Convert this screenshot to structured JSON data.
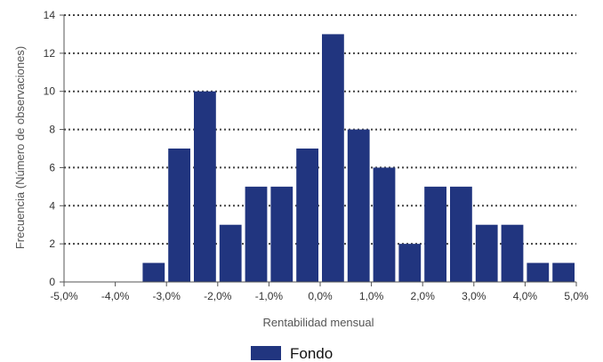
{
  "chart_data": {
    "type": "bar",
    "title": "",
    "xlabel": "Rentabilidad mensual",
    "ylabel": "Frecuencia (Número de observaciones)",
    "ylim": [
      0,
      14
    ],
    "xlim": [
      -5.0,
      5.0
    ],
    "bin_width": 0.5,
    "y_ticks": [
      "0",
      "2",
      "4",
      "6",
      "8",
      "10",
      "12",
      "14"
    ],
    "x_ticks": [
      "-5,0%",
      "-4,0%",
      "-3,0%",
      "-2,0%",
      "-1,0%",
      "0,0%",
      "1,0%",
      "2,0%",
      "3,0%",
      "4,0%",
      "5,0%"
    ],
    "x_tick_values": [
      -5,
      -4,
      -3,
      -2,
      -1,
      0,
      1,
      2,
      3,
      4,
      5
    ],
    "grid": "horizontal dotted",
    "legend_position": "bottom-center",
    "series": [
      {
        "name": "Fondo",
        "color": "#21357f",
        "bin_centers": [
          -4.75,
          -4.25,
          -3.75,
          -3.25,
          -2.75,
          -2.25,
          -1.75,
          -1.25,
          -0.75,
          -0.25,
          0.25,
          0.75,
          1.25,
          1.75,
          2.25,
          2.75,
          3.25,
          3.75,
          4.25,
          4.75
        ],
        "values": [
          0,
          0,
          0,
          1,
          7,
          10,
          3,
          5,
          5,
          7,
          13,
          8,
          6,
          2,
          5,
          5,
          3,
          3,
          1,
          1
        ]
      }
    ]
  }
}
